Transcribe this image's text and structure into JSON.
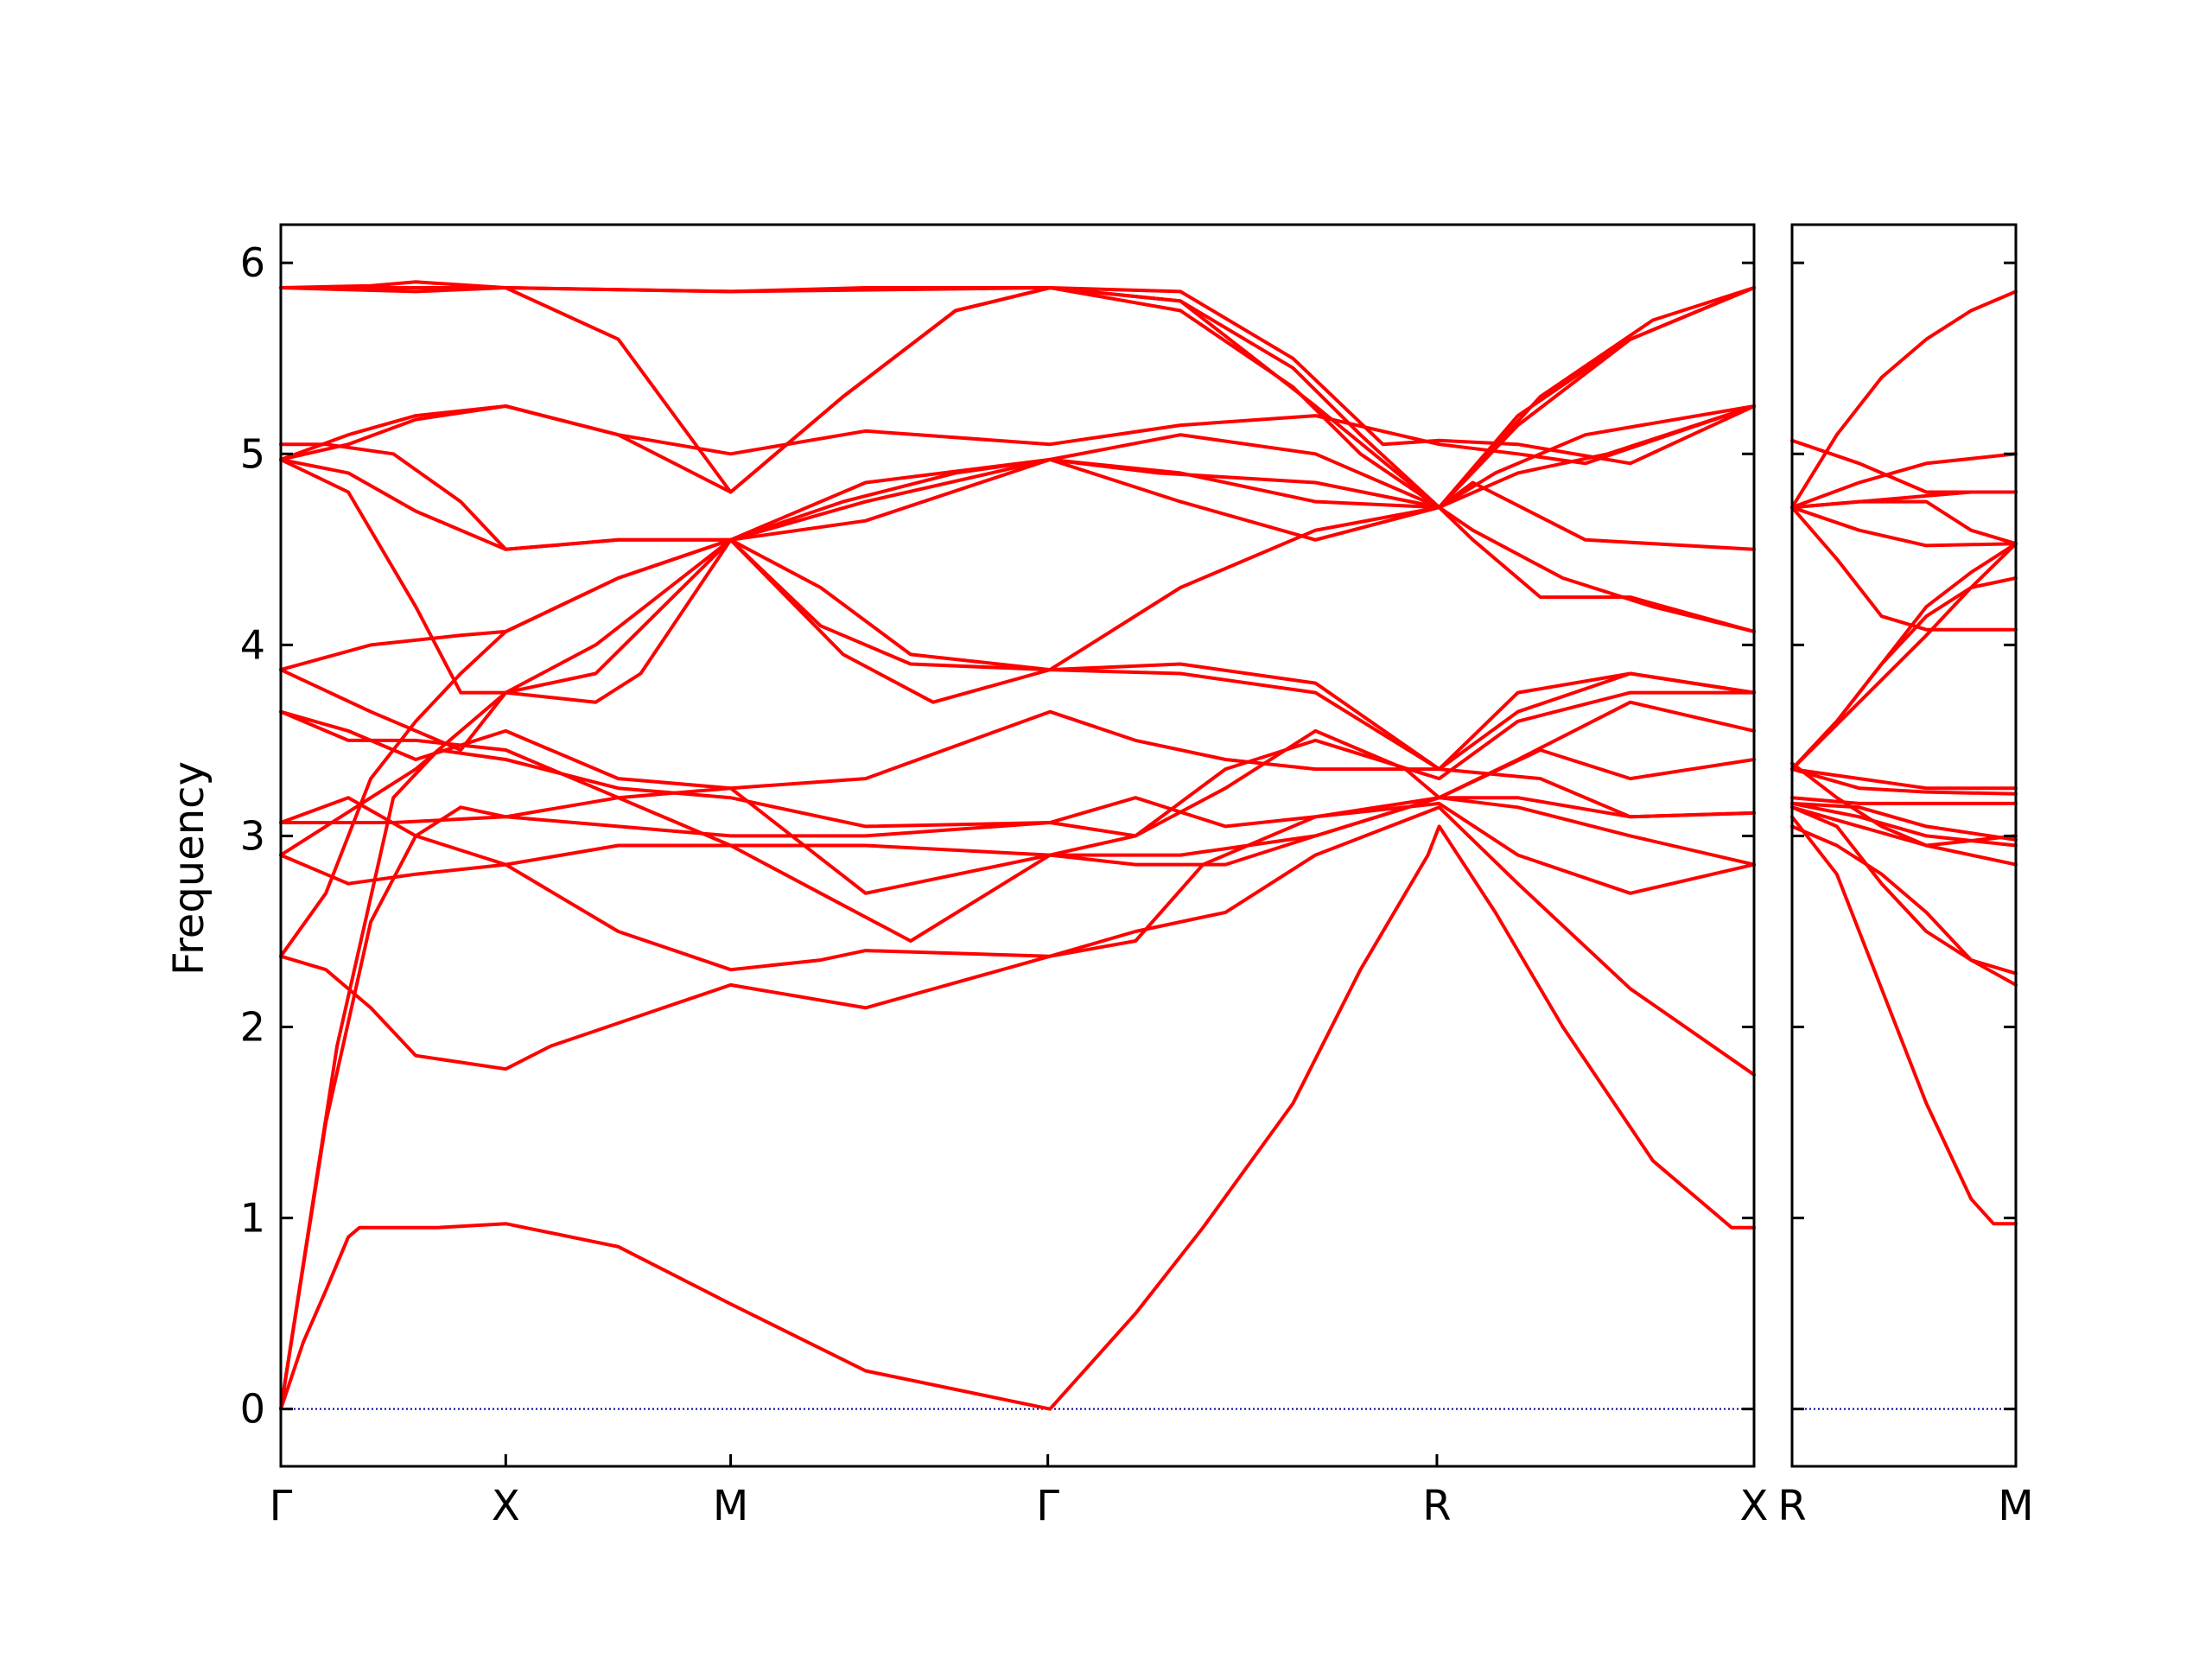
{
  "chart_data": {
    "type": "line",
    "title": "",
    "xlabel": "",
    "ylabel": "Frequency",
    "ylim": [
      -0.3,
      6.2
    ],
    "yticks": [
      0,
      1,
      2,
      3,
      4,
      5,
      6
    ],
    "grid": false,
    "legend": "none",
    "line_color": "#ff0000",
    "zero_line_color": "#0000a0",
    "panels": [
      {
        "name": "main",
        "x_labels": [
          "Γ",
          "X",
          "M",
          "Γ",
          "R",
          "X"
        ],
        "segment_lengths": [
          1.0,
          1.0,
          1.41,
          1.73,
          1.41
        ]
      },
      {
        "name": "side",
        "x_labels": [
          "R",
          "M"
        ],
        "segment_lengths": [
          1.0
        ]
      }
    ],
    "series_main": [
      [
        0,
        0,
        0.1,
        0.35,
        0.2,
        0.62,
        0.3,
        0.9,
        0.35,
        0.95,
        0.5,
        0.95,
        0.7,
        0.95,
        1.0,
        0.97,
        1.5,
        0.85,
        2.0,
        0.55,
        2.6,
        0.2,
        3.42,
        0.0,
        3.8,
        0.5,
        4.1,
        0.95,
        4.5,
        1.6,
        4.8,
        2.3,
        5.1,
        2.9,
        5.15,
        3.05,
        5.4,
        2.6,
        5.7,
        2.0,
        6.1,
        1.3,
        6.45,
        0.95,
        6.55,
        0.95
      ],
      [
        0,
        0,
        0.2,
        1.5,
        0.4,
        2.55,
        0.6,
        3.0,
        0.8,
        3.15,
        1.0,
        3.1,
        1.5,
        3.05,
        2.0,
        3.0,
        2.6,
        3.0,
        3.42,
        3.07,
        3.8,
        3.0,
        4.2,
        3.25,
        4.6,
        3.55,
        5.0,
        3.35,
        5.15,
        3.2,
        5.5,
        3.2,
        6.0,
        3.1,
        6.55,
        3.12
      ],
      [
        0,
        0,
        0.25,
        1.9,
        0.5,
        3.2,
        0.7,
        3.45,
        1.0,
        3.4,
        1.5,
        3.25,
        2.0,
        3.2,
        2.6,
        3.05,
        3.42,
        3.07,
        3.8,
        3.2,
        4.2,
        3.05,
        4.6,
        3.1,
        5.15,
        3.17,
        5.5,
        2.9,
        6.0,
        2.7,
        6.55,
        2.85
      ],
      [
        0,
        2.37,
        0.2,
        2.3,
        0.4,
        2.1,
        0.6,
        1.85,
        1.0,
        1.78,
        1.2,
        1.9,
        2.0,
        2.22,
        2.6,
        2.1,
        3.42,
        2.37,
        3.8,
        2.5,
        4.2,
        2.6,
        4.6,
        2.9,
        5.15,
        3.15,
        5.5,
        2.75,
        6.0,
        2.2,
        6.55,
        1.75
      ],
      [
        0,
        2.37,
        0.2,
        2.7,
        0.4,
        3.3,
        0.6,
        3.6,
        0.8,
        3.85,
        1.0,
        4.07,
        1.5,
        4.35,
        2.0,
        4.55,
        2.4,
        4.3,
        2.8,
        3.95,
        3.42,
        3.87,
        4.0,
        4.3,
        4.6,
        4.6,
        5.15,
        4.72,
        5.3,
        4.55,
        5.6,
        4.25,
        6.0,
        4.25,
        6.55,
        4.07
      ],
      [
        0,
        2.9,
        0.2,
        3.05,
        0.4,
        3.2,
        0.6,
        3.35,
        1.0,
        3.75,
        1.4,
        4.0,
        2.0,
        4.55,
        2.6,
        4.65,
        3.42,
        4.97,
        4.0,
        5.1,
        4.6,
        5.0,
        5.15,
        4.72,
        5.3,
        4.85,
        5.8,
        4.55,
        6.55,
        4.5
      ],
      [
        0,
        2.9,
        0.3,
        2.75,
        0.6,
        2.8,
        1.0,
        2.85,
        1.5,
        2.95,
        2.0,
        2.95,
        2.6,
        2.95,
        3.42,
        2.9,
        3.8,
        2.85,
        4.2,
        2.85,
        4.6,
        3.0,
        5.15,
        3.2,
        5.5,
        3.15,
        6.0,
        3.0,
        6.55,
        2.85
      ],
      [
        0,
        3.07,
        0.3,
        3.2,
        0.6,
        3.0,
        1.0,
        2.85,
        1.5,
        2.5,
        2.0,
        2.3,
        2.4,
        2.35,
        2.6,
        2.4,
        3.42,
        2.37,
        3.8,
        2.45,
        4.1,
        2.85,
        4.6,
        3.1,
        5.15,
        3.2,
        5.5,
        3.4,
        6.0,
        3.7,
        6.55,
        3.55
      ],
      [
        0,
        3.07,
        0.5,
        3.07,
        1.0,
        3.1,
        1.5,
        3.2,
        2.0,
        3.25,
        2.6,
        3.3,
        3.42,
        3.65,
        3.8,
        3.5,
        4.2,
        3.4,
        4.6,
        3.35,
        5.15,
        3.35,
        5.5,
        3.75,
        6.0,
        3.85,
        6.55,
        3.75
      ],
      [
        0,
        3.65,
        0.3,
        3.55,
        0.6,
        3.4,
        1.0,
        3.55,
        1.5,
        3.3,
        2.0,
        3.25,
        2.6,
        2.7,
        3.42,
        2.9,
        3.8,
        3.0,
        4.2,
        3.35,
        4.6,
        3.5,
        5.15,
        3.3,
        5.5,
        3.6,
        6.0,
        3.75,
        6.55,
        3.75
      ],
      [
        0,
        3.65,
        0.3,
        3.5,
        0.6,
        3.5,
        1.0,
        3.45,
        1.5,
        3.2,
        2.0,
        2.95,
        2.4,
        2.7,
        2.8,
        2.45,
        3.42,
        2.9,
        4.0,
        2.9,
        4.6,
        3.0,
        5.15,
        3.2,
        5.6,
        3.45,
        6.0,
        3.3,
        6.55,
        3.4
      ],
      [
        0,
        3.87,
        0.4,
        3.65,
        0.8,
        3.45,
        1.0,
        3.75,
        1.4,
        3.85,
        2.0,
        4.55,
        2.4,
        4.1,
        2.8,
        3.9,
        3.42,
        3.87,
        4.0,
        3.85,
        4.6,
        3.75,
        5.15,
        3.35,
        5.6,
        3.3,
        6.0,
        3.1,
        6.55,
        3.12
      ],
      [
        0,
        3.87,
        0.4,
        4.0,
        0.8,
        4.05,
        1.0,
        4.07,
        1.5,
        4.35,
        2.0,
        4.55,
        2.5,
        3.95,
        2.9,
        3.7,
        3.42,
        3.87,
        4.0,
        3.9,
        4.6,
        3.8,
        5.15,
        3.35,
        5.5,
        3.65,
        6.0,
        3.85,
        6.55,
        3.75
      ],
      [
        0,
        4.97,
        0.3,
        4.8,
        0.6,
        4.2,
        0.8,
        3.75,
        1.0,
        3.75,
        1.4,
        3.7,
        1.6,
        3.85,
        2.0,
        4.55,
        2.6,
        4.75,
        3.42,
        4.97,
        4.0,
        4.75,
        4.6,
        4.55,
        5.15,
        4.72,
        5.3,
        4.6,
        5.7,
        4.35,
        6.1,
        4.2,
        6.55,
        4.07
      ],
      [
        0,
        4.97,
        0.3,
        4.9,
        0.6,
        4.7,
        1.0,
        4.5,
        1.5,
        4.55,
        2.0,
        4.55,
        2.6,
        4.85,
        3.42,
        4.97,
        3.9,
        4.9,
        4.6,
        4.85,
        5.15,
        4.72,
        5.5,
        4.9,
        5.9,
        5.0,
        6.55,
        5.25
      ],
      [
        0,
        5.05,
        0.2,
        5.05,
        0.5,
        5.0,
        0.8,
        4.75,
        1.0,
        4.5,
        1.5,
        4.55,
        2.0,
        4.55,
        2.5,
        4.75,
        3.0,
        4.9,
        3.42,
        4.97,
        4.0,
        4.9,
        4.6,
        4.75,
        5.15,
        4.72,
        5.4,
        4.9,
        5.8,
        5.1,
        6.55,
        5.25
      ],
      [
        0,
        4.97,
        0.3,
        5.05,
        0.6,
        5.18,
        1.0,
        5.25,
        1.5,
        5.1,
        2.0,
        5.0,
        2.6,
        5.12,
        3.42,
        5.05,
        4.0,
        5.15,
        4.6,
        5.2,
        5.15,
        5.05,
        5.5,
        5.0,
        5.8,
        4.95,
        6.55,
        5.25
      ],
      [
        0,
        4.97,
        0.3,
        5.1,
        0.6,
        5.2,
        1.0,
        5.25,
        1.5,
        5.1,
        2.0,
        4.8,
        2.5,
        5.3,
        3.0,
        5.75,
        3.42,
        5.87,
        4.0,
        5.8,
        4.5,
        5.45,
        4.8,
        5.1,
        5.15,
        4.72,
        5.5,
        5.15,
        6.0,
        5.6,
        6.55,
        5.87
      ],
      [
        0,
        5.87,
        0.5,
        5.87,
        1.0,
        5.87,
        1.5,
        5.6,
        2.0,
        4.8,
        2.5,
        5.3,
        3.0,
        5.75,
        3.42,
        5.87,
        4.0,
        5.75,
        4.5,
        5.35,
        4.8,
        5.0,
        5.15,
        4.72,
        5.6,
        5.3,
        6.1,
        5.7,
        6.55,
        5.87
      ],
      [
        0,
        5.87,
        0.6,
        5.85,
        1.0,
        5.87,
        1.5,
        5.86,
        2.0,
        5.85,
        2.6,
        5.87,
        3.42,
        5.87,
        4.0,
        5.8,
        4.6,
        5.25,
        5.15,
        4.72,
        5.5,
        5.2,
        6.0,
        5.6,
        6.55,
        5.87
      ],
      [
        0,
        5.87,
        0.4,
        5.88,
        0.6,
        5.9,
        1.0,
        5.87,
        2.0,
        5.85,
        3.42,
        5.87,
        4.0,
        5.85,
        4.5,
        5.5,
        4.9,
        5.05,
        5.15,
        5.07,
        5.5,
        5.05,
        6.0,
        4.95,
        6.55,
        5.25
      ]
    ],
    "series_side": [
      [
        0,
        3.1,
        0.2,
        2.8,
        0.4,
        2.2,
        0.6,
        1.6,
        0.8,
        1.1,
        0.9,
        0.97,
        1.0,
        0.97
      ],
      [
        0,
        3.05,
        0.2,
        2.95,
        0.4,
        2.8,
        0.6,
        2.6,
        0.8,
        2.35,
        1.0,
        2.22
      ],
      [
        0,
        3.15,
        0.2,
        3.05,
        0.4,
        2.75,
        0.6,
        2.5,
        0.8,
        2.35,
        1.0,
        2.28
      ],
      [
        0,
        3.15,
        0.3,
        3.05,
        0.6,
        2.95,
        1.0,
        2.85
      ],
      [
        0,
        3.17,
        0.3,
        3.1,
        0.6,
        3.0,
        1.0,
        2.95
      ],
      [
        0,
        3.17,
        0.3,
        3.15,
        0.6,
        3.05,
        1.0,
        2.98
      ],
      [
        0,
        3.2,
        0.3,
        3.17,
        0.6,
        3.17,
        1.0,
        3.17
      ],
      [
        0,
        3.35,
        0.3,
        3.25,
        0.6,
        3.23,
        1.0,
        3.22
      ],
      [
        0,
        3.35,
        0.3,
        3.3,
        0.6,
        3.25,
        1.0,
        3.25
      ],
      [
        0,
        3.38,
        0.2,
        3.2,
        0.4,
        3.05,
        0.6,
        2.95,
        1.0,
        3.0
      ],
      [
        0,
        3.35,
        0.2,
        3.6,
        0.4,
        3.9,
        0.6,
        4.15,
        0.8,
        4.3,
        1.0,
        4.35
      ],
      [
        0,
        3.35,
        0.2,
        3.6,
        0.4,
        3.9,
        0.6,
        4.2,
        0.8,
        4.38,
        1.0,
        4.53
      ],
      [
        0,
        3.35,
        0.3,
        3.7,
        0.6,
        4.05,
        0.8,
        4.3,
        1.0,
        4.53
      ],
      [
        0,
        4.72,
        0.2,
        4.45,
        0.4,
        4.15,
        0.6,
        4.08,
        1.0,
        4.08
      ],
      [
        0,
        4.72,
        0.3,
        4.6,
        0.6,
        4.52,
        1.0,
        4.53
      ],
      [
        0,
        4.72,
        0.3,
        4.75,
        0.6,
        4.78,
        0.8,
        4.8,
        1.0,
        4.8
      ],
      [
        0,
        4.72,
        0.3,
        4.75,
        0.6,
        4.75,
        0.8,
        4.6,
        1.0,
        4.53
      ],
      [
        0,
        4.72,
        0.3,
        4.85,
        0.6,
        4.95,
        1.0,
        5.0
      ],
      [
        0,
        5.07,
        0.3,
        4.95,
        0.6,
        4.8,
        1.0,
        4.8
      ],
      [
        0,
        4.72,
        0.2,
        5.1,
        0.4,
        5.4,
        0.6,
        5.6,
        0.8,
        5.75,
        1.0,
        5.85
      ]
    ]
  }
}
